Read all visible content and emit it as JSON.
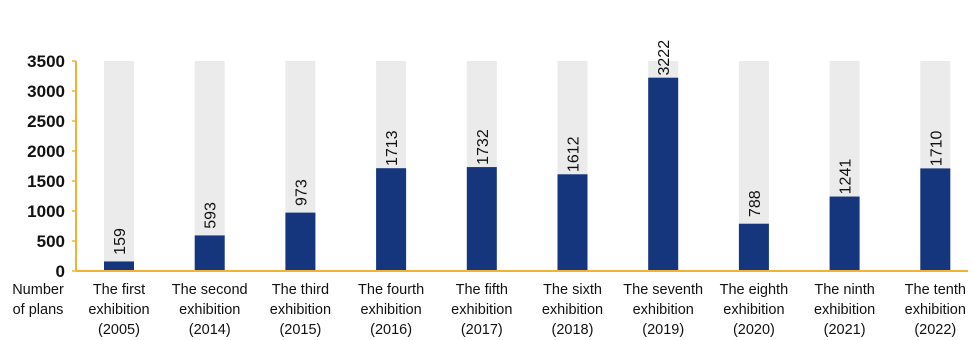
{
  "chart_data": {
    "type": "bar",
    "categories": [
      [
        "The first",
        "exhibition",
        "(2005)"
      ],
      [
        "The second",
        "exhibition",
        "(2014)"
      ],
      [
        "The third",
        "exhibition",
        "(2015)"
      ],
      [
        "The fourth",
        "exhibition",
        "(2016)"
      ],
      [
        "The fifth",
        "exhibition",
        "(2017)"
      ],
      [
        "The sixth",
        "exhibition",
        "(2018)"
      ],
      [
        "The seventh",
        "exhibition",
        "(2019)"
      ],
      [
        "The eighth",
        "exhibition",
        "(2020)"
      ],
      [
        "The ninth",
        "exhibition",
        "(2021)"
      ],
      [
        "The tenth",
        "exhibition",
        "(2022)"
      ]
    ],
    "values": [
      159,
      593,
      973,
      1713,
      1732,
      1612,
      3222,
      788,
      1241,
      1710
    ],
    "data_labels": [
      "159",
      "593",
      "973",
      "1713",
      "1732",
      "1612",
      "3222",
      "788",
      "1241",
      "1710"
    ],
    "ylabel": [
      "Number",
      "of plans"
    ],
    "ylim": [
      0,
      3500
    ],
    "yticks": [
      0,
      500,
      1000,
      1500,
      2000,
      2500,
      3000,
      3500
    ],
    "ytick_labels": [
      "0",
      "500",
      "1000",
      "1500",
      "2000",
      "2500",
      "3000",
      "3500"
    ],
    "colors": {
      "bar": "#15357c",
      "background_bar": "#ebebeb",
      "axis": "#f2b233",
      "text": "#111111"
    },
    "grid": false,
    "legend": "none",
    "data_label_orientation": "vertical"
  }
}
